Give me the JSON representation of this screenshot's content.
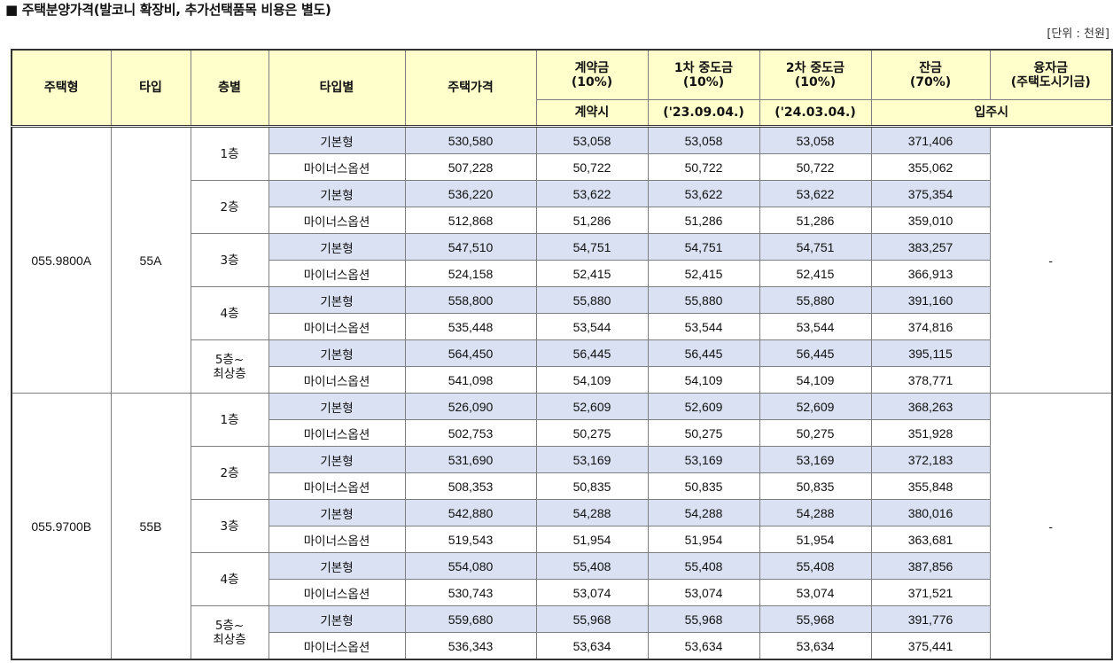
{
  "page": {
    "title": "■ 주택분양가격(발코니 확장비, 추가선택품목 비용은 별도)",
    "unit": "[단위 : 천원]"
  },
  "headers": {
    "house_type": "주택형",
    "type": "타입",
    "floor": "층별",
    "type_option": "타입별",
    "price": "주택가격",
    "deposit": "계약금",
    "deposit_pct": "(10%)",
    "mid1": "1차 중도금",
    "mid1_pct": "(10%)",
    "mid2": "2차 중도금",
    "mid2_pct": "(10%)",
    "balance": "잔금",
    "balance_pct": "(70%)",
    "loan": "융자금",
    "loan_sub": "(주택도시기금)",
    "deposit_when": "계약시",
    "mid1_when": "('23.09.04.)",
    "mid2_when": "('24.03.04.)",
    "balance_when": "입주시"
  },
  "groups": [
    {
      "house_type": "055.9800A",
      "type": "55A",
      "loan": "-",
      "floors": [
        {
          "label": "1층",
          "rows": [
            {
              "option": "기본형",
              "price": "530,580",
              "deposit": "53,058",
              "mid1": "53,058",
              "mid2": "53,058",
              "balance": "371,406"
            },
            {
              "option": "마이너스옵션",
              "price": "507,228",
              "deposit": "50,722",
              "mid1": "50,722",
              "mid2": "50,722",
              "balance": "355,062"
            }
          ]
        },
        {
          "label": "2층",
          "rows": [
            {
              "option": "기본형",
              "price": "536,220",
              "deposit": "53,622",
              "mid1": "53,622",
              "mid2": "53,622",
              "balance": "375,354"
            },
            {
              "option": "마이너스옵션",
              "price": "512,868",
              "deposit": "51,286",
              "mid1": "51,286",
              "mid2": "51,286",
              "balance": "359,010"
            }
          ]
        },
        {
          "label": "3층",
          "rows": [
            {
              "option": "기본형",
              "price": "547,510",
              "deposit": "54,751",
              "mid1": "54,751",
              "mid2": "54,751",
              "balance": "383,257"
            },
            {
              "option": "마이너스옵션",
              "price": "524,158",
              "deposit": "52,415",
              "mid1": "52,415",
              "mid2": "52,415",
              "balance": "366,913"
            }
          ]
        },
        {
          "label": "4층",
          "rows": [
            {
              "option": "기본형",
              "price": "558,800",
              "deposit": "55,880",
              "mid1": "55,880",
              "mid2": "55,880",
              "balance": "391,160"
            },
            {
              "option": "마이너스옵션",
              "price": "535,448",
              "deposit": "53,544",
              "mid1": "53,544",
              "mid2": "53,544",
              "balance": "374,816"
            }
          ]
        },
        {
          "label": "5층~\n최상층",
          "rows": [
            {
              "option": "기본형",
              "price": "564,450",
              "deposit": "56,445",
              "mid1": "56,445",
              "mid2": "56,445",
              "balance": "395,115"
            },
            {
              "option": "마이너스옵션",
              "price": "541,098",
              "deposit": "54,109",
              "mid1": "54,109",
              "mid2": "54,109",
              "balance": "378,771"
            }
          ]
        }
      ]
    },
    {
      "house_type": "055.9700B",
      "type": "55B",
      "loan": "-",
      "floors": [
        {
          "label": "1층",
          "rows": [
            {
              "option": "기본형",
              "price": "526,090",
              "deposit": "52,609",
              "mid1": "52,609",
              "mid2": "52,609",
              "balance": "368,263"
            },
            {
              "option": "마이너스옵션",
              "price": "502,753",
              "deposit": "50,275",
              "mid1": "50,275",
              "mid2": "50,275",
              "balance": "351,928"
            }
          ]
        },
        {
          "label": "2층",
          "rows": [
            {
              "option": "기본형",
              "price": "531,690",
              "deposit": "53,169",
              "mid1": "53,169",
              "mid2": "53,169",
              "balance": "372,183"
            },
            {
              "option": "마이너스옵션",
              "price": "508,353",
              "deposit": "50,835",
              "mid1": "50,835",
              "mid2": "50,835",
              "balance": "355,848"
            }
          ]
        },
        {
          "label": "3층",
          "rows": [
            {
              "option": "기본형",
              "price": "542,880",
              "deposit": "54,288",
              "mid1": "54,288",
              "mid2": "54,288",
              "balance": "380,016"
            },
            {
              "option": "마이너스옵션",
              "price": "519,543",
              "deposit": "51,954",
              "mid1": "51,954",
              "mid2": "51,954",
              "balance": "363,681"
            }
          ]
        },
        {
          "label": "4층",
          "rows": [
            {
              "option": "기본형",
              "price": "554,080",
              "deposit": "55,408",
              "mid1": "55,408",
              "mid2": "55,408",
              "balance": "387,856"
            },
            {
              "option": "마이너스옵션",
              "price": "530,743",
              "deposit": "53,074",
              "mid1": "53,074",
              "mid2": "53,074",
              "balance": "371,521"
            }
          ]
        },
        {
          "label": "5층~\n최상층",
          "rows": [
            {
              "option": "기본형",
              "price": "559,680",
              "deposit": "55,968",
              "mid1": "55,968",
              "mid2": "55,968",
              "balance": "391,776"
            },
            {
              "option": "마이너스옵션",
              "price": "536,343",
              "deposit": "53,634",
              "mid1": "53,634",
              "mid2": "53,634",
              "balance": "375,441"
            }
          ]
        }
      ]
    }
  ],
  "colors": {
    "header_bg": "#ffffcc",
    "basic_row_bg": "#d9e1f2",
    "border": "#7f7f7f"
  }
}
